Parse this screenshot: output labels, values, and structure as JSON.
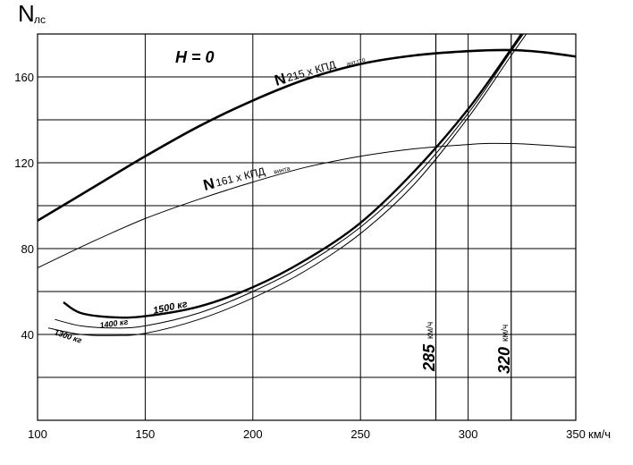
{
  "chart_data": {
    "type": "line",
    "xlabel": "км/ч",
    "ylabel": "N",
    "ylabel_sub": "лс",
    "xlim": [
      100,
      350
    ],
    "ylim": [
      0,
      180
    ],
    "x_ticks": [
      100,
      150,
      200,
      250,
      300,
      350
    ],
    "y_ticks": [
      40,
      80,
      120,
      160
    ],
    "grid": true,
    "annotation_text": "H = 0",
    "curve_labels": {
      "main_a": "N",
      "sub_a": "215 x КПД",
      "small_a": "ант.гто",
      "main_b": "N",
      "sub_b": "161 x КПД",
      "small_b": "винта",
      "req_1500": "1500 кг",
      "req_1400": "1400 кг",
      "req_1300": "1300 кг"
    },
    "marker_labels": {
      "v1": "285",
      "v1_unit": "км/ч",
      "v2": "320",
      "v2_unit": "км/ч"
    },
    "markers": [
      285,
      320
    ],
    "series": [
      {
        "key": "avail_215",
        "points": [
          [
            100,
            93
          ],
          [
            125,
            108
          ],
          [
            150,
            123
          ],
          [
            175,
            137
          ],
          [
            200,
            149
          ],
          [
            225,
            159
          ],
          [
            250,
            166
          ],
          [
            275,
            170
          ],
          [
            300,
            172
          ],
          [
            320,
            172.5
          ],
          [
            335,
            171.5
          ],
          [
            350,
            169.5
          ]
        ]
      },
      {
        "key": "avail_161",
        "points": [
          [
            100,
            71
          ],
          [
            125,
            83
          ],
          [
            150,
            94
          ],
          [
            175,
            103
          ],
          [
            200,
            111
          ],
          [
            225,
            118
          ],
          [
            250,
            123
          ],
          [
            275,
            126.5
          ],
          [
            300,
            128.5
          ],
          [
            310,
            129
          ],
          [
            325,
            128.8
          ],
          [
            350,
            127.2
          ]
        ]
      },
      {
        "key": "req_1500",
        "points": [
          [
            112,
            55
          ],
          [
            120,
            50
          ],
          [
            135,
            48
          ],
          [
            150,
            48.5
          ],
          [
            175,
            53
          ],
          [
            200,
            62
          ],
          [
            225,
            75
          ],
          [
            250,
            92
          ],
          [
            275,
            116
          ],
          [
            300,
            145
          ],
          [
            320,
            173
          ],
          [
            328,
            185
          ]
        ]
      },
      {
        "key": "req_1400",
        "points": [
          [
            108,
            47
          ],
          [
            120,
            44
          ],
          [
            135,
            43
          ],
          [
            150,
            44
          ],
          [
            175,
            50
          ],
          [
            200,
            60
          ],
          [
            225,
            73
          ],
          [
            250,
            90
          ],
          [
            275,
            113
          ],
          [
            300,
            143
          ],
          [
            320,
            172
          ],
          [
            330,
            186
          ]
        ]
      },
      {
        "key": "req_1300",
        "points": [
          [
            105,
            43
          ],
          [
            120,
            40
          ],
          [
            135,
            39.5
          ],
          [
            150,
            40.5
          ],
          [
            175,
            47
          ],
          [
            200,
            57
          ],
          [
            225,
            70
          ],
          [
            250,
            87
          ],
          [
            275,
            110
          ],
          [
            300,
            141
          ],
          [
            320,
            170
          ],
          [
            332,
            187
          ]
        ]
      }
    ]
  }
}
